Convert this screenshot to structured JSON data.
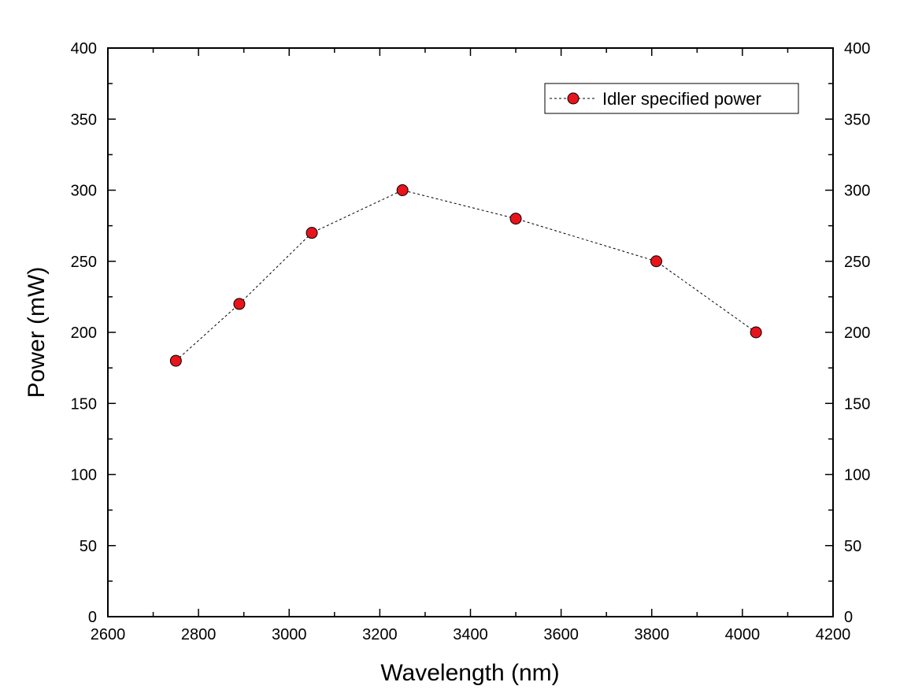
{
  "chart_data": {
    "type": "line",
    "xlabel": "Wavelength (nm)",
    "ylabel": "Power (mW)",
    "xlim": [
      2600,
      4200
    ],
    "ylim": [
      0,
      400
    ],
    "x_ticks": [
      2600,
      2800,
      3000,
      3200,
      3400,
      3600,
      3800,
      4000,
      4200
    ],
    "y_ticks": [
      0,
      50,
      100,
      150,
      200,
      250,
      300,
      350,
      400
    ],
    "x_tick_labels": [
      "2600",
      "2800",
      "3000",
      "3200",
      "3400",
      "3600",
      "3800",
      "4000",
      "4200"
    ],
    "y_tick_labels": [
      "0",
      "50",
      "100",
      "150",
      "200",
      "250",
      "300",
      "350",
      "400"
    ],
    "right_axis_mirrors_left": true,
    "grid": false,
    "legend_position": "top-right",
    "series": [
      {
        "name": "Idler specified power",
        "x": [
          2750,
          2890,
          3050,
          3250,
          3500,
          3810,
          4030
        ],
        "y": [
          180,
          220,
          270,
          300,
          280,
          250,
          200
        ],
        "marker": "circle",
        "marker_color": "#e8141c",
        "line_style": "dashed",
        "line_color": "#000000"
      }
    ]
  }
}
